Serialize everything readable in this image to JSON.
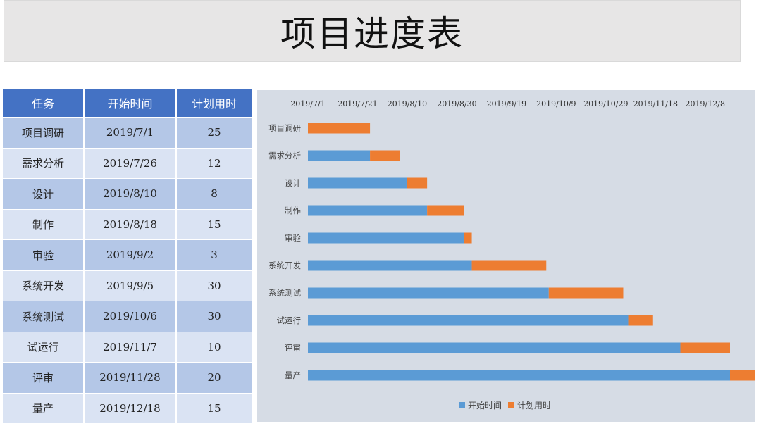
{
  "page": {
    "title": "项目进度表"
  },
  "table": {
    "headers": [
      "任务",
      "开始时间",
      "计划用时"
    ],
    "rows": [
      [
        "项目调研",
        "2019/7/1",
        "25"
      ],
      [
        "需求分析",
        "2019/7/26",
        "12"
      ],
      [
        "设计",
        "2019/8/10",
        "8"
      ],
      [
        "制作",
        "2019/8/18",
        "15"
      ],
      [
        "审验",
        "2019/9/2",
        "3"
      ],
      [
        "系统开发",
        "2019/9/5",
        "30"
      ],
      [
        "系统测试",
        "2019/10/6",
        "30"
      ],
      [
        "试运行",
        "2019/11/7",
        "10"
      ],
      [
        "评审",
        "2019/11/28",
        "20"
      ],
      [
        "量产",
        "2019/12/18",
        "15"
      ]
    ]
  },
  "chart_data": {
    "type": "bar",
    "orientation": "horizontal",
    "stacked": true,
    "categories": [
      "项目调研",
      "需求分析",
      "设计",
      "制作",
      "审验",
      "系统开发",
      "系统测试",
      "试运行",
      "评审",
      "量产"
    ],
    "series": [
      {
        "name": "开始时间",
        "color": "#5b9bd5",
        "values": [
          "2019-07-01",
          "2019-07-26",
          "2019-08-10",
          "2019-08-18",
          "2019-09-02",
          "2019-09-05",
          "2019-10-06",
          "2019-11-07",
          "2019-11-28",
          "2019-12-18"
        ]
      },
      {
        "name": "计划用时",
        "color": "#ed7d31",
        "values": [
          25,
          12,
          8,
          15,
          3,
          30,
          30,
          10,
          20,
          15
        ]
      }
    ],
    "x_axis": {
      "position": "top",
      "min": "2019-07-01",
      "max": "2019-12-18",
      "ticks": [
        "2019-07-01",
        "2019-07-21",
        "2019-08-10",
        "2019-08-30",
        "2019-09-19",
        "2019-10-09",
        "2019-10-29",
        "2019-11-18",
        "2019-12-08"
      ],
      "tick_labels": [
        "2019/7/1",
        "2019/7/21",
        "2019/8/10",
        "2019/8/30",
        "2019/9/19",
        "2019/10/9",
        "2019/10/29",
        "2019/11/18",
        "2019/12/8"
      ]
    },
    "grid": false,
    "legend": {
      "position": "bottom",
      "entries": [
        "开始时间",
        "计划用时"
      ]
    }
  }
}
